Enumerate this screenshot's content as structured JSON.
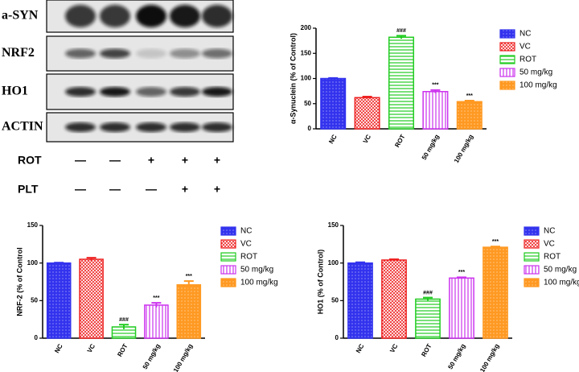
{
  "blot": {
    "bands": [
      "a-SYN",
      "NRF2",
      "HO1",
      "ACTIN"
    ],
    "treatments": [
      {
        "name": "ROT",
        "signs": [
          "—",
          "—",
          "+",
          "+",
          "+"
        ]
      },
      {
        "name": "PLT",
        "signs": [
          "—",
          "—",
          "—",
          "+",
          "+"
        ]
      }
    ]
  },
  "chart_data": [
    {
      "type": "bar",
      "ylabel": "α-Synuclein (% of Control)",
      "categories": [
        "NC",
        "VC",
        "ROT",
        "50 mg/kg",
        "100 mg/kg"
      ],
      "values": [
        100,
        62,
        182,
        74,
        54
      ],
      "errors": [
        1,
        2,
        3,
        3,
        2
      ],
      "annotations": [
        null,
        null,
        "###",
        "***",
        "***"
      ],
      "colors": [
        "#3333ee",
        "#ee2222",
        "#22cc22",
        "#cc33ee",
        "#ff9922"
      ],
      "patterns": [
        "dots",
        "crosshatch",
        "horizontal",
        "vertical",
        "dots"
      ],
      "ylim": [
        0,
        200
      ],
      "yticks": [
        0,
        50,
        100,
        150,
        200
      ],
      "legend": "right"
    },
    {
      "type": "bar",
      "ylabel": "NRF-2 (% of Control",
      "categories": [
        "NC",
        "VC",
        "ROT",
        "50 mg/kg",
        "100 mg/kg"
      ],
      "values": [
        100,
        105,
        15,
        44,
        71
      ],
      "errors": [
        0.5,
        2,
        3,
        3,
        5
      ],
      "annotations": [
        null,
        null,
        "###",
        "***",
        "***"
      ],
      "colors": [
        "#3333ee",
        "#ee2222",
        "#22cc22",
        "#cc33ee",
        "#ff9922"
      ],
      "patterns": [
        "dots",
        "crosshatch",
        "horizontal",
        "vertical",
        "dots"
      ],
      "ylim": [
        0,
        150
      ],
      "yticks": [
        0,
        50,
        100,
        150
      ],
      "legend": "right"
    },
    {
      "type": "bar",
      "ylabel": "HO1 (% of Control)",
      "categories": [
        "NC",
        "VC",
        "ROT",
        "50 mg/kg",
        "100 mg/kg"
      ],
      "values": [
        100,
        104,
        52,
        80,
        121
      ],
      "errors": [
        1,
        1,
        2,
        1,
        1
      ],
      "annotations": [
        null,
        null,
        "###",
        "***",
        "***"
      ],
      "colors": [
        "#3333ee",
        "#ee2222",
        "#22cc22",
        "#cc33ee",
        "#ff9922"
      ],
      "patterns": [
        "dots",
        "crosshatch",
        "horizontal",
        "vertical",
        "dots"
      ],
      "ylim": [
        0,
        150
      ],
      "yticks": [
        0,
        50,
        100,
        150
      ],
      "legend": "right"
    }
  ]
}
